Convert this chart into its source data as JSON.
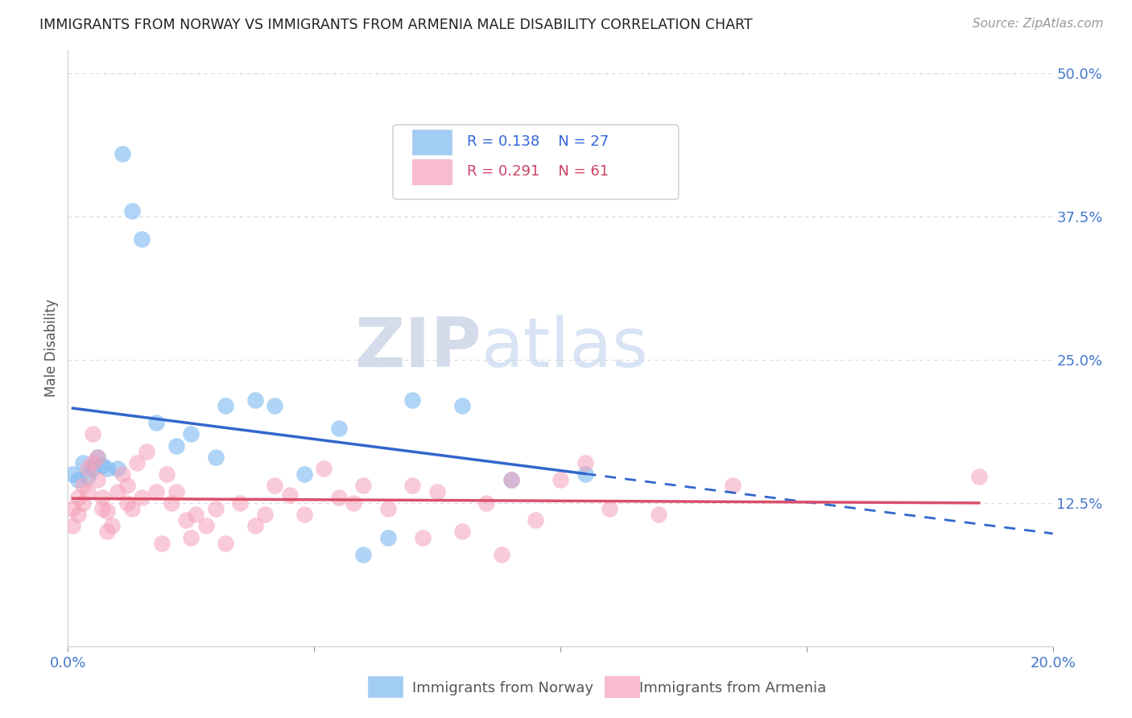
{
  "title": "IMMIGRANTS FROM NORWAY VS IMMIGRANTS FROM ARMENIA MALE DISABILITY CORRELATION CHART",
  "source": "Source: ZipAtlas.com",
  "ylabel": "Male Disability",
  "xlim": [
    0.0,
    0.2
  ],
  "ylim": [
    0.0,
    0.52
  ],
  "xticks": [
    0.0,
    0.05,
    0.1,
    0.15,
    0.2
  ],
  "xtick_labels": [
    "0.0%",
    "",
    "",
    "",
    "20.0%"
  ],
  "yticks": [
    0.0,
    0.125,
    0.25,
    0.375,
    0.5
  ],
  "ytick_labels": [
    "",
    "12.5%",
    "25.0%",
    "37.5%",
    "50.0%"
  ],
  "norway_R": 0.138,
  "norway_N": 27,
  "armenia_R": 0.291,
  "armenia_N": 61,
  "norway_color": "#7ab8f0",
  "armenia_color": "#f5a0b8",
  "norway_line_color": "#3366cc",
  "armenia_line_color": "#d94f6a",
  "norway_x": [
    0.001,
    0.002,
    0.003,
    0.004,
    0.005,
    0.006,
    0.007,
    0.008,
    0.01,
    0.011,
    0.013,
    0.015,
    0.018,
    0.022,
    0.025,
    0.03,
    0.032,
    0.038,
    0.042,
    0.048,
    0.055,
    0.06,
    0.065,
    0.07,
    0.08,
    0.09,
    0.105
  ],
  "norway_y": [
    0.15,
    0.145,
    0.16,
    0.148,
    0.155,
    0.165,
    0.158,
    0.155,
    0.155,
    0.43,
    0.38,
    0.355,
    0.195,
    0.175,
    0.185,
    0.165,
    0.21,
    0.215,
    0.21,
    0.15,
    0.19,
    0.08,
    0.095,
    0.215,
    0.21,
    0.145,
    0.15
  ],
  "armenia_x": [
    0.001,
    0.001,
    0.002,
    0.002,
    0.003,
    0.003,
    0.004,
    0.004,
    0.005,
    0.005,
    0.006,
    0.006,
    0.007,
    0.007,
    0.008,
    0.008,
    0.009,
    0.01,
    0.011,
    0.012,
    0.012,
    0.013,
    0.014,
    0.015,
    0.016,
    0.018,
    0.019,
    0.02,
    0.021,
    0.022,
    0.024,
    0.025,
    0.026,
    0.028,
    0.03,
    0.032,
    0.035,
    0.038,
    0.04,
    0.042,
    0.045,
    0.048,
    0.052,
    0.055,
    0.058,
    0.06,
    0.065,
    0.07,
    0.072,
    0.075,
    0.08,
    0.085,
    0.088,
    0.09,
    0.095,
    0.1,
    0.105,
    0.11,
    0.12,
    0.135,
    0.185
  ],
  "armenia_y": [
    0.12,
    0.105,
    0.115,
    0.13,
    0.125,
    0.14,
    0.155,
    0.135,
    0.185,
    0.16,
    0.145,
    0.165,
    0.12,
    0.13,
    0.1,
    0.118,
    0.105,
    0.135,
    0.15,
    0.14,
    0.125,
    0.12,
    0.16,
    0.13,
    0.17,
    0.135,
    0.09,
    0.15,
    0.125,
    0.135,
    0.11,
    0.095,
    0.115,
    0.105,
    0.12,
    0.09,
    0.125,
    0.105,
    0.115,
    0.14,
    0.132,
    0.115,
    0.155,
    0.13,
    0.125,
    0.14,
    0.12,
    0.14,
    0.095,
    0.135,
    0.1,
    0.125,
    0.08,
    0.145,
    0.11,
    0.145,
    0.16,
    0.12,
    0.115,
    0.14,
    0.148
  ],
  "norway_line_x0": 0.001,
  "norway_line_x1": 0.105,
  "norway_line_x_dash_end": 0.2,
  "watermark_zip": "ZIP",
  "watermark_atlas": "atlas",
  "background_color": "#ffffff",
  "grid_color": "#d8d8d8"
}
